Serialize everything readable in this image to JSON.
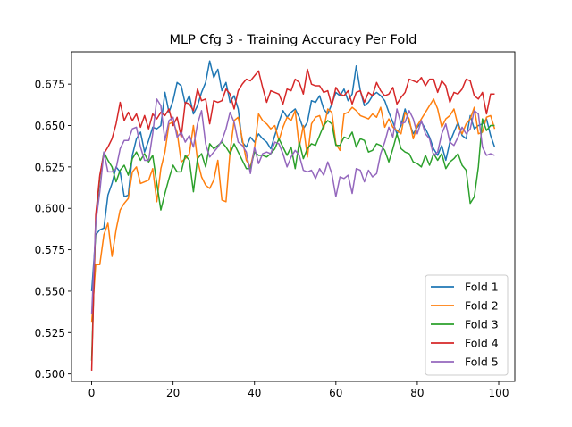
{
  "chart_data": {
    "type": "line",
    "title": "MLP Cfg 3 - Training Accuracy Per Fold",
    "xlabel": "",
    "ylabel": "",
    "xlim": [
      -4.95,
      103.95
    ],
    "ylim": [
      0.4955,
      0.6945
    ],
    "x_ticks": [
      0,
      20,
      40,
      60,
      80,
      100
    ],
    "x_tick_labels": [
      "0",
      "20",
      "40",
      "60",
      "80",
      "100"
    ],
    "y_ticks": [
      0.5,
      0.525,
      0.55,
      0.575,
      0.6,
      0.625,
      0.65,
      0.675
    ],
    "y_tick_labels": [
      "0.500",
      "0.525",
      "0.550",
      "0.575",
      "0.600",
      "0.625",
      "0.650",
      "0.675"
    ],
    "grid": false,
    "legend_position": "lower-right",
    "series": [
      {
        "name": "Fold 1",
        "color": "#1f77b4",
        "values": [
          0.55,
          0.584,
          0.587,
          0.588,
          0.608,
          0.615,
          0.625,
          0.622,
          0.607,
          0.608,
          0.632,
          0.642,
          0.646,
          0.634,
          0.641,
          0.649,
          0.648,
          0.65,
          0.67,
          0.658,
          0.665,
          0.676,
          0.674,
          0.663,
          0.668,
          0.657,
          0.662,
          0.67,
          0.676,
          0.689,
          0.679,
          0.684,
          0.671,
          0.676,
          0.664,
          0.668,
          0.66,
          0.64,
          0.637,
          0.643,
          0.64,
          0.645,
          0.642,
          0.64,
          0.636,
          0.644,
          0.652,
          0.659,
          0.655,
          0.658,
          0.66,
          0.655,
          0.648,
          0.652,
          0.665,
          0.664,
          0.668,
          0.66,
          0.657,
          0.663,
          0.67,
          0.668,
          0.672,
          0.665,
          0.669,
          0.686,
          0.671,
          0.662,
          0.664,
          0.668,
          0.67,
          0.668,
          0.665,
          0.658,
          0.652,
          0.645,
          0.65,
          0.66,
          0.652,
          0.645,
          0.649,
          0.652,
          0.648,
          0.643,
          0.636,
          0.632,
          0.638,
          0.629,
          0.64,
          0.646,
          0.652,
          0.644,
          0.642,
          0.656,
          0.648,
          0.65,
          0.651,
          0.654,
          0.644,
          0.637
        ]
      },
      {
        "name": "Fold 2",
        "color": "#ff7f0e",
        "values": [
          0.531,
          0.566,
          0.566,
          0.584,
          0.591,
          0.571,
          0.587,
          0.599,
          0.603,
          0.606,
          0.622,
          0.625,
          0.615,
          0.616,
          0.617,
          0.624,
          0.604,
          0.624,
          0.634,
          0.651,
          0.652,
          0.646,
          0.628,
          0.63,
          0.633,
          0.65,
          0.629,
          0.619,
          0.614,
          0.612,
          0.617,
          0.629,
          0.605,
          0.604,
          0.634,
          0.653,
          0.655,
          0.642,
          0.629,
          0.625,
          0.636,
          0.657,
          0.653,
          0.651,
          0.648,
          0.65,
          0.641,
          0.649,
          0.655,
          0.653,
          0.659,
          0.637,
          0.65,
          0.631,
          0.651,
          0.655,
          0.656,
          0.648,
          0.66,
          0.658,
          0.639,
          0.635,
          0.657,
          0.658,
          0.661,
          0.659,
          0.656,
          0.655,
          0.654,
          0.657,
          0.655,
          0.661,
          0.649,
          0.654,
          0.649,
          0.647,
          0.645,
          0.658,
          0.654,
          0.642,
          0.65,
          0.654,
          0.658,
          0.662,
          0.666,
          0.66,
          0.649,
          0.654,
          0.656,
          0.66,
          0.65,
          0.645,
          0.651,
          0.654,
          0.661,
          0.645,
          0.646,
          0.655,
          0.656,
          0.648
        ]
      },
      {
        "name": "Fold 3",
        "color": "#2ca02c",
        "values": [
          0.508,
          0.592,
          0.619,
          0.634,
          0.629,
          0.625,
          0.616,
          0.623,
          0.626,
          0.62,
          0.63,
          0.634,
          0.629,
          0.633,
          0.628,
          0.632,
          0.615,
          0.599,
          0.609,
          0.618,
          0.626,
          0.622,
          0.622,
          0.632,
          0.629,
          0.61,
          0.63,
          0.633,
          0.625,
          0.639,
          0.636,
          0.638,
          0.64,
          0.637,
          0.633,
          0.639,
          0.634,
          0.629,
          0.624,
          0.624,
          0.634,
          0.632,
          0.632,
          0.631,
          0.633,
          0.636,
          0.642,
          0.637,
          0.632,
          0.637,
          0.624,
          0.64,
          0.63,
          0.636,
          0.639,
          0.638,
          0.644,
          0.65,
          0.653,
          0.651,
          0.638,
          0.638,
          0.643,
          0.642,
          0.646,
          0.637,
          0.642,
          0.641,
          0.634,
          0.635,
          0.639,
          0.638,
          0.635,
          0.628,
          0.636,
          0.645,
          0.636,
          0.634,
          0.633,
          0.628,
          0.627,
          0.625,
          0.632,
          0.626,
          0.633,
          0.629,
          0.633,
          0.624,
          0.628,
          0.63,
          0.633,
          0.626,
          0.623,
          0.603,
          0.607,
          0.625,
          0.654,
          0.647,
          0.65,
          0.65
        ]
      },
      {
        "name": "Fold 4",
        "color": "#d62728",
        "values": [
          0.502,
          0.596,
          0.62,
          0.633,
          0.637,
          0.642,
          0.651,
          0.664,
          0.653,
          0.658,
          0.653,
          0.657,
          0.649,
          0.656,
          0.648,
          0.657,
          0.654,
          0.658,
          0.656,
          0.66,
          0.65,
          0.655,
          0.643,
          0.664,
          0.663,
          0.659,
          0.672,
          0.665,
          0.666,
          0.651,
          0.665,
          0.664,
          0.665,
          0.672,
          0.669,
          0.66,
          0.671,
          0.675,
          0.678,
          0.677,
          0.68,
          0.683,
          0.673,
          0.664,
          0.671,
          0.67,
          0.669,
          0.663,
          0.672,
          0.671,
          0.678,
          0.676,
          0.669,
          0.684,
          0.675,
          0.674,
          0.674,
          0.67,
          0.671,
          0.662,
          0.673,
          0.669,
          0.668,
          0.671,
          0.663,
          0.67,
          0.671,
          0.664,
          0.67,
          0.668,
          0.676,
          0.671,
          0.668,
          0.669,
          0.673,
          0.663,
          0.667,
          0.67,
          0.678,
          0.677,
          0.676,
          0.679,
          0.674,
          0.678,
          0.678,
          0.67,
          0.677,
          0.674,
          0.664,
          0.67,
          0.669,
          0.672,
          0.678,
          0.677,
          0.668,
          0.666,
          0.67,
          0.657,
          0.669,
          0.669
        ]
      },
      {
        "name": "Fold 5",
        "color": "#9467bd",
        "values": [
          0.536,
          0.591,
          0.61,
          0.634,
          0.622,
          0.622,
          0.624,
          0.636,
          0.641,
          0.641,
          0.648,
          0.649,
          0.637,
          0.629,
          0.629,
          0.645,
          0.666,
          0.662,
          0.641,
          0.653,
          0.655,
          0.643,
          0.646,
          0.64,
          0.644,
          0.637,
          0.651,
          0.659,
          0.639,
          0.631,
          0.634,
          0.637,
          0.641,
          0.648,
          0.658,
          0.652,
          0.64,
          0.638,
          0.634,
          0.621,
          0.637,
          0.627,
          0.633,
          0.634,
          0.633,
          0.64,
          0.639,
          0.633,
          0.625,
          0.631,
          0.635,
          0.632,
          0.623,
          0.622,
          0.623,
          0.618,
          0.624,
          0.62,
          0.628,
          0.621,
          0.607,
          0.619,
          0.618,
          0.62,
          0.609,
          0.624,
          0.623,
          0.616,
          0.623,
          0.619,
          0.621,
          0.633,
          0.64,
          0.649,
          0.643,
          0.66,
          0.651,
          0.652,
          0.659,
          0.654,
          0.645,
          0.653,
          0.645,
          0.642,
          0.632,
          0.634,
          0.645,
          0.651,
          0.64,
          0.638,
          0.643,
          0.649,
          0.645,
          0.648,
          0.659,
          0.657,
          0.637,
          0.632,
          0.633,
          0.632
        ]
      }
    ]
  }
}
